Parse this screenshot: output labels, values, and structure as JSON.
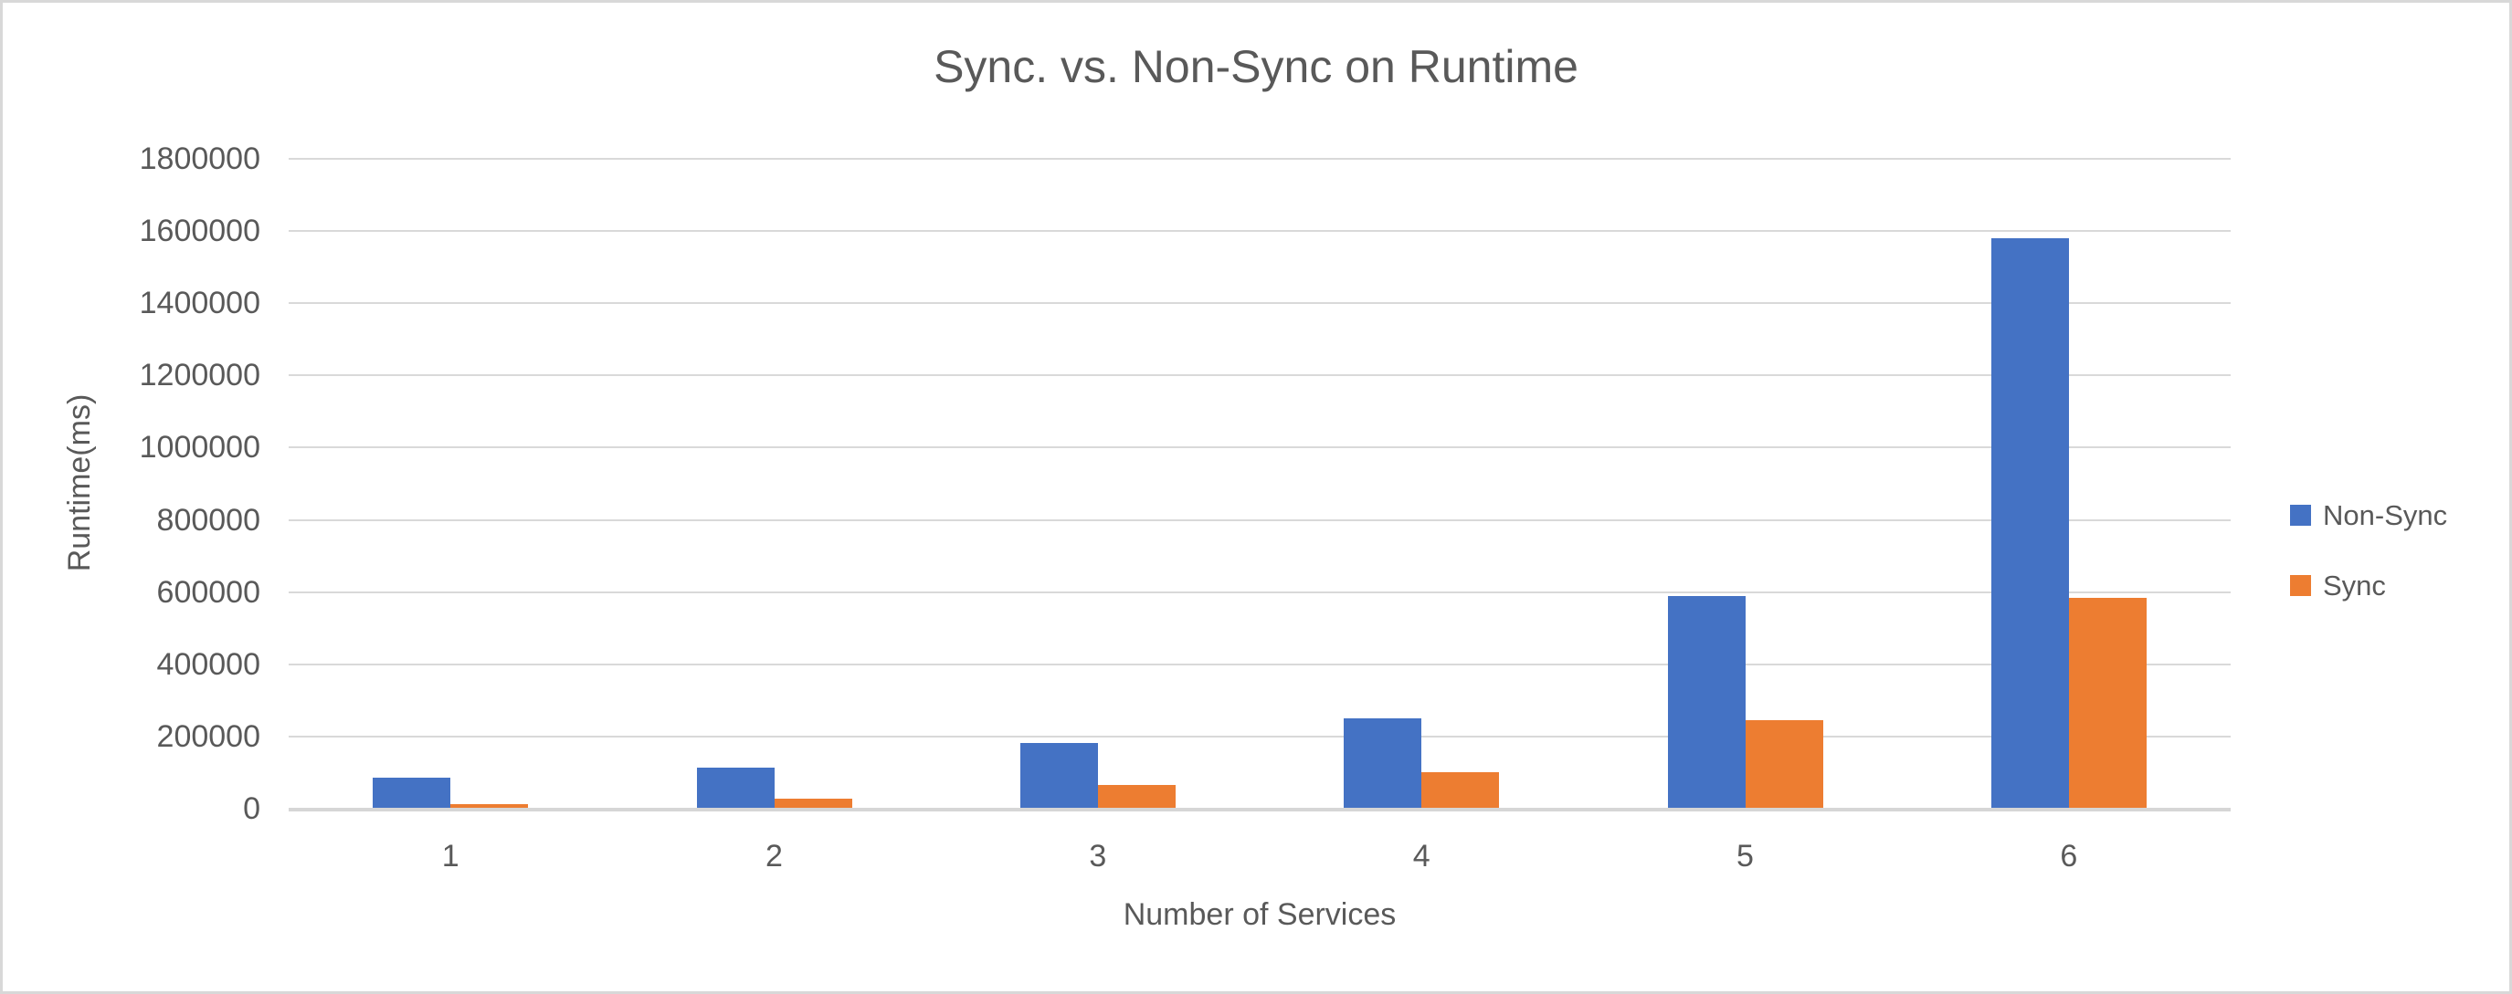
{
  "chart_data": {
    "type": "bar",
    "title": "Sync. vs. Non-Sync on Runtime",
    "xlabel": "Number of Services",
    "ylabel": "Runtime(ms)",
    "categories": [
      "1",
      "2",
      "3",
      "4",
      "5",
      "6"
    ],
    "series": [
      {
        "name": "Non-Sync",
        "color": "#4472C4",
        "values": [
          85000,
          113000,
          183000,
          250000,
          588000,
          1580000
        ]
      },
      {
        "name": "Sync",
        "color": "#ED7D31",
        "values": [
          13000,
          27000,
          65000,
          100000,
          244000,
          583000
        ]
      }
    ],
    "ylim": [
      0,
      1800000
    ],
    "ytick_labels": [
      "0",
      "200000",
      "400000",
      "600000",
      "800000",
      "1000000",
      "1200000",
      "1400000",
      "1600000",
      "1800000"
    ],
    "grid": true,
    "legend_position": "right",
    "legend": [
      "Non-Sync",
      "Sync"
    ]
  },
  "colors": {
    "text": "#595959",
    "gridline": "#D9D9D9",
    "axis_line": "#D6D6D6",
    "frame_border": "#D8D8D8",
    "background": "#FFFFFF"
  }
}
